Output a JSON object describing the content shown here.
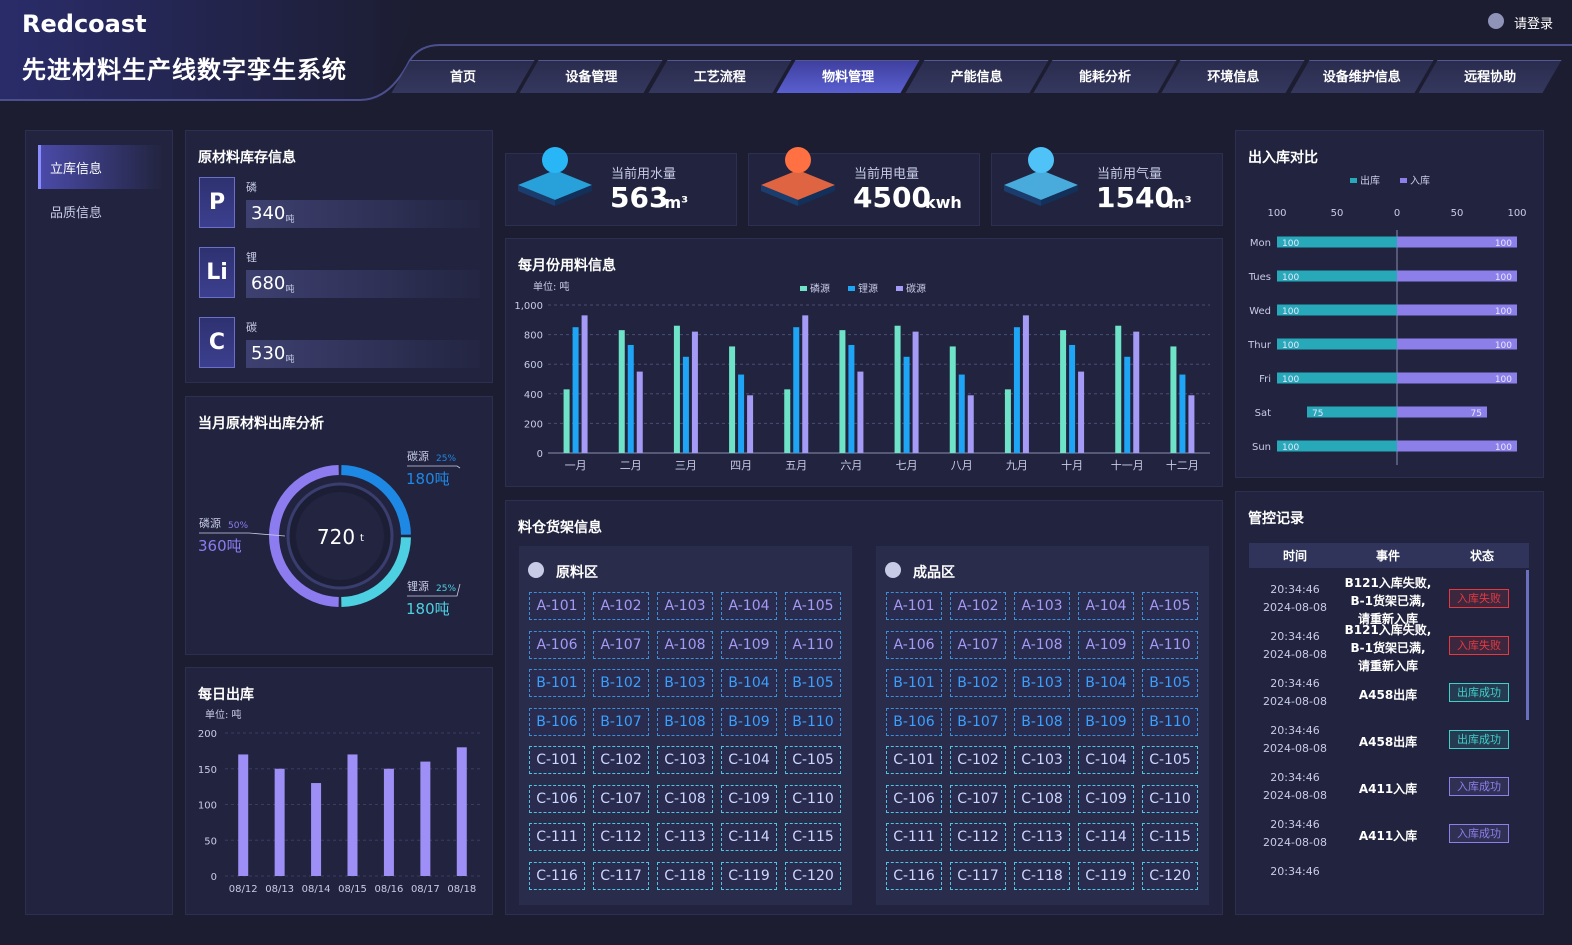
{
  "header": {
    "brand": "Redcoast",
    "title": "先进材料生产线数字孪生系统",
    "login": "请登录",
    "nav": [
      "首页",
      "设备管理",
      "工艺流程",
      "物料管理",
      "产能信息",
      "能耗分析",
      "环境信息",
      "设备维护信息",
      "远程协助"
    ],
    "active_nav": 3
  },
  "sidebar": {
    "items": [
      "立库信息",
      "品质信息"
    ],
    "active": 0
  },
  "stock": {
    "title": "原材料库存信息",
    "items": [
      {
        "symbol": "P",
        "name": "磷",
        "value": 340,
        "unit": "吨"
      },
      {
        "symbol": "Li",
        "name": "锂",
        "value": 680,
        "unit": "吨"
      },
      {
        "symbol": "C",
        "name": "碳",
        "value": 530,
        "unit": "吨"
      }
    ]
  },
  "usage": [
    {
      "label": "当前用水量",
      "value": 563,
      "unit": "m³",
      "color": "#29b6f6"
    },
    {
      "label": "当前用电量",
      "value": 4500,
      "unit": "kwh",
      "color": "#ff7043"
    },
    {
      "label": "当前用气量",
      "value": 1540,
      "unit": "m³",
      "color": "#4fc3f7"
    }
  ],
  "monthly": {
    "type": "bar",
    "title": "每月份用料信息",
    "unit": "单位: 吨",
    "categories": [
      "一月",
      "二月",
      "三月",
      "四月",
      "五月",
      "六月",
      "七月",
      "八月",
      "九月",
      "十月",
      "十一月",
      "十二月"
    ],
    "series": [
      {
        "name": "磷源",
        "color": "#6fe3c8",
        "values": [
          430,
          830,
          860,
          720,
          430,
          830,
          860,
          720,
          430,
          830,
          860,
          720
        ]
      },
      {
        "name": "锂源",
        "color": "#1ea5f5",
        "values": [
          850,
          730,
          650,
          530,
          850,
          730,
          650,
          530,
          850,
          730,
          650,
          530
        ]
      },
      {
        "name": "碳源",
        "color": "#a59af5",
        "values": [
          930,
          550,
          820,
          390,
          930,
          550,
          820,
          390,
          930,
          550,
          820,
          390
        ]
      }
    ],
    "ylim": [
      0,
      1000
    ],
    "yticks": [
      0,
      200,
      400,
      600,
      800,
      {
        "value": 1000,
        "label": "1,000"
      }
    ],
    "grid": true
  },
  "outbound": {
    "type": "pie",
    "title": "当月原材料出库分析",
    "total": 720,
    "total_unit": "t",
    "categories": [
      "碳源",
      "锂源",
      "磷源"
    ],
    "values": [
      25,
      25,
      50
    ],
    "value_labels": [
      "25%",
      "25%",
      "50%"
    ],
    "amount_labels": [
      "180吨",
      "180吨",
      "360吨"
    ],
    "colors": [
      "#1e88e5",
      "#4dd0e1",
      "#8c7cf0"
    ]
  },
  "daily": {
    "type": "bar",
    "title": "每日出库",
    "unit": "单位: 吨",
    "categories": [
      "08/12",
      "08/13",
      "08/14",
      "08/15",
      "08/16",
      "08/17",
      "08/18"
    ],
    "values": [
      170,
      150,
      130,
      170,
      150,
      160,
      180
    ],
    "color": "#9d8ff5",
    "ylim": [
      0,
      200
    ],
    "yticks": [
      0,
      50,
      100,
      150,
      200
    ]
  },
  "inout": {
    "type": "bar",
    "orientation": "horizontal",
    "title": "出入库对比",
    "categories": [
      "Mon",
      "Tues",
      "Wed",
      "Thur",
      "Fri",
      "Sat",
      "Sun"
    ],
    "series": [
      {
        "name": "出库",
        "color": "#27a9ba",
        "values": [
          100,
          100,
          100,
          100,
          100,
          75,
          100
        ]
      },
      {
        "name": "入库",
        "color": "#8d7fea",
        "values": [
          100,
          100,
          100,
          100,
          100,
          75,
          100
        ]
      }
    ],
    "xlim": [
      -100,
      100
    ],
    "xticks": [
      {
        "value": -100,
        "label": "100"
      },
      {
        "value": -50,
        "label": "50"
      },
      0,
      50,
      100
    ]
  },
  "shelves": {
    "title": "料仓货架信息",
    "zones": [
      {
        "name": "原料区",
        "slots": [
          "A-101",
          "A-102",
          "A-103",
          "A-104",
          "A-105",
          "A-106",
          "A-107",
          "A-108",
          "A-109",
          "A-110",
          "B-101",
          "B-102",
          "B-103",
          "B-104",
          "B-105",
          "B-106",
          "B-107",
          "B-108",
          "B-109",
          "B-110",
          "C-101",
          "C-102",
          "C-103",
          "C-104",
          "C-105",
          "C-106",
          "C-107",
          "C-108",
          "C-109",
          "C-110",
          "C-111",
          "C-112",
          "C-113",
          "C-114",
          "C-115",
          "C-116",
          "C-117",
          "C-118",
          "C-119",
          "C-120"
        ]
      },
      {
        "name": "成品区",
        "slots": [
          "A-101",
          "A-102",
          "A-103",
          "A-104",
          "A-105",
          "A-106",
          "A-107",
          "A-108",
          "A-109",
          "A-110",
          "B-101",
          "B-102",
          "B-103",
          "B-104",
          "B-105",
          "B-106",
          "B-107",
          "B-108",
          "B-109",
          "B-110",
          "C-101",
          "C-102",
          "C-103",
          "C-104",
          "C-105",
          "C-106",
          "C-107",
          "C-108",
          "C-109",
          "C-110",
          "C-111",
          "C-112",
          "C-113",
          "C-114",
          "C-115",
          "C-116",
          "C-117",
          "C-118",
          "C-119",
          "C-120"
        ]
      }
    ]
  },
  "log": {
    "title": "管控记录",
    "columns": [
      "时间",
      "事件",
      "状态"
    ],
    "rows": [
      {
        "time": "20:34:46",
        "date": "2024-08-08",
        "event": [
          "B121入库失败,",
          "B-1货架已满,",
          "请重新入库"
        ],
        "status": "入库失败",
        "color": "#e53940"
      },
      {
        "time": "20:34:46",
        "date": "2024-08-08",
        "event": [
          "B121入库失败,",
          "B-1货架已满,",
          "请重新入库"
        ],
        "status": "入库失败",
        "color": "#e53940"
      },
      {
        "time": "20:34:46",
        "date": "2024-08-08",
        "event": [
          "A458出库"
        ],
        "status": "出库成功",
        "color": "#3fd0c9"
      },
      {
        "time": "20:34:46",
        "date": "2024-08-08",
        "event": [
          "A458出库"
        ],
        "status": "出库成功",
        "color": "#3fd0c9"
      },
      {
        "time": "20:34:46",
        "date": "2024-08-08",
        "event": [
          "A411入库"
        ],
        "status": "入库成功",
        "color": "#8d7fea"
      },
      {
        "time": "20:34:46",
        "date": "2024-08-08",
        "event": [
          "A411入库"
        ],
        "status": "入库成功",
        "color": "#8d7fea"
      },
      {
        "time": "20:34:46"
      }
    ]
  }
}
